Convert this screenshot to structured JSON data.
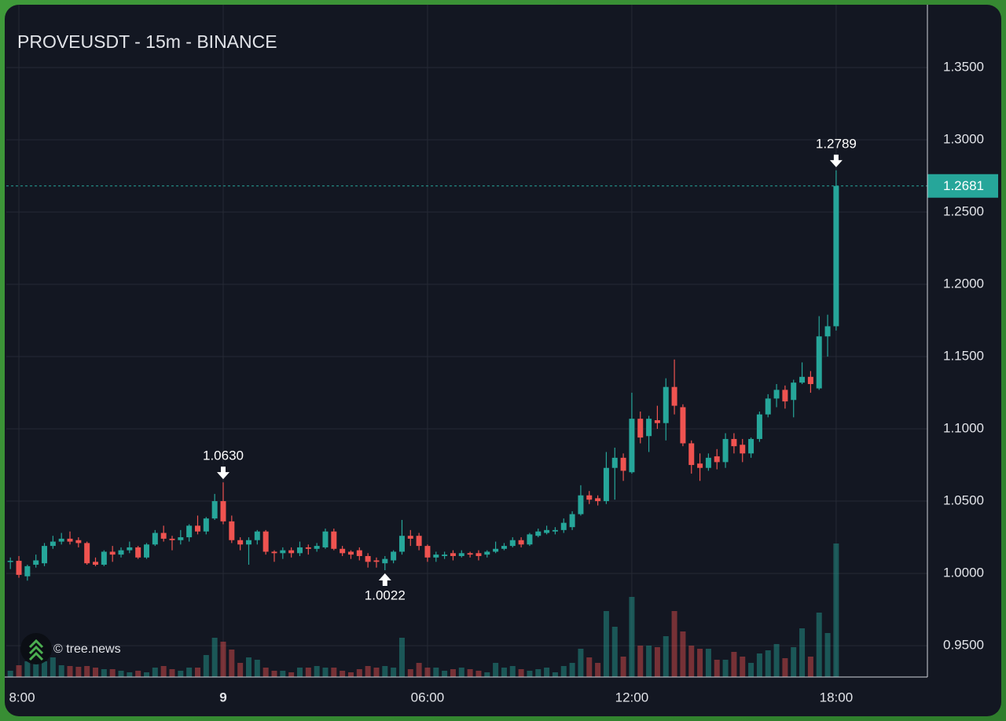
{
  "chart_data": {
    "type": "candlestick",
    "title": "PROVEUSDT - 15m - BINANCE",
    "watermark": "© tree.news",
    "up_color": "#26a69a",
    "down_color": "#ef5350",
    "x": [
      -6.25,
      -6,
      -5.75,
      -5.5,
      -5.25,
      -5,
      -4.75,
      -4.5,
      -4.25,
      -4,
      -3.75,
      -3.5,
      -3.25,
      -3,
      -2.75,
      -2.5,
      -2.25,
      -2,
      -1.75,
      -1.5,
      -1.25,
      -1,
      -0.75,
      -0.5,
      -0.25,
      0,
      0.25,
      0.5,
      0.75,
      1,
      1.25,
      1.5,
      1.75,
      2,
      2.25,
      2.5,
      2.75,
      3,
      3.25,
      3.5,
      3.75,
      4,
      4.25,
      4.5,
      4.75,
      5,
      5.25,
      5.5,
      5.75,
      6,
      6.25,
      6.5,
      6.75,
      7,
      7.25,
      7.5,
      7.75,
      8,
      8.25,
      8.5,
      8.75,
      9,
      9.25,
      9.5,
      9.75,
      10,
      10.25,
      10.5,
      10.75,
      11,
      11.25,
      11.5,
      11.75,
      12,
      12.25,
      12.5,
      12.75,
      13,
      13.25,
      13.5,
      13.75,
      14,
      14.25,
      14.5,
      14.75,
      15,
      15.25,
      15.5,
      15.75,
      16,
      16.25,
      16.5,
      16.75,
      17,
      17.25,
      17.5,
      17.75,
      18
    ],
    "open": [
      1.0082,
      1.0087,
      0.998,
      1.006,
      1.007,
      1.019,
      1.022,
      1.024,
      1.023,
      1.021,
      1.008,
      1.006,
      1.015,
      1.013,
      1.016,
      1.018,
      1.011,
      1.02,
      1.028,
      1.024,
      1.023,
      1.025,
      1.033,
      1.029,
      1.038,
      1.05,
      1.036,
      1.023,
      1.02,
      1.023,
      1.029,
      1.015,
      1.014,
      1.016,
      1.014,
      1.018,
      1.017,
      1.018,
      1.029,
      1.017,
      1.015,
      1.016,
      1.012,
      1.009,
      1.007,
      1.009,
      1.015,
      1.026,
      1.026,
      1.019,
      1.011,
      1.012,
      1.014,
      1.012,
      1.014,
      1.014,
      1.013,
      1.015,
      1.017,
      1.019,
      1.023,
      1.02,
      1.026,
      1.028,
      1.029,
      1.03,
      1.032,
      1.041,
      1.054,
      1.052,
      1.05,
      1.073,
      1.08,
      1.07,
      1.107,
      1.095,
      1.106,
      1.104,
      1.129,
      1.115,
      1.09,
      1.076,
      1.073,
      1.081,
      1.077,
      1.093,
      1.089,
      1.083,
      1.093,
      1.11,
      1.121,
      1.127,
      1.12,
      1.132,
      1.136,
      1.128,
      1.164,
      1.171
    ],
    "high": [
      1.011,
      1.012,
      1.006,
      1.013,
      1.021,
      1.026,
      1.028,
      1.029,
      1.025,
      1.022,
      1.011,
      1.016,
      1.019,
      1.018,
      1.022,
      1.019,
      1.021,
      1.03,
      1.033,
      1.026,
      1.03,
      1.034,
      1.04,
      1.039,
      1.055,
      1.063,
      1.04,
      1.025,
      1.025,
      1.03,
      1.03,
      1.016,
      1.018,
      1.018,
      1.022,
      1.02,
      1.021,
      1.031,
      1.031,
      1.019,
      1.016,
      1.018,
      1.014,
      1.011,
      1.012,
      1.016,
      1.037,
      1.03,
      1.028,
      1.02,
      1.015,
      1.015,
      1.016,
      1.016,
      1.015,
      1.016,
      1.016,
      1.022,
      1.021,
      1.025,
      1.025,
      1.028,
      1.031,
      1.033,
      1.032,
      1.038,
      1.043,
      1.061,
      1.057,
      1.054,
      1.084,
      1.087,
      1.083,
      1.125,
      1.112,
      1.109,
      1.116,
      1.135,
      1.148,
      1.117,
      1.092,
      1.083,
      1.083,
      1.086,
      1.097,
      1.097,
      1.093,
      1.094,
      1.112,
      1.124,
      1.131,
      1.13,
      1.134,
      1.146,
      1.14,
      1.178,
      1.179,
      1.2789
    ],
    "low": [
      1.003,
      0.997,
      0.995,
      1.004,
      1.005,
      1.017,
      1.02,
      1.02,
      1.018,
      1.006,
      1.005,
      1.005,
      1.008,
      1.011,
      1.014,
      1.01,
      1.01,
      1.019,
      1.022,
      1.016,
      1.02,
      1.022,
      1.027,
      1.027,
      1.037,
      1.034,
      1.021,
      1.016,
      1.006,
      1.02,
      1.013,
      1.008,
      1.01,
      1.011,
      1.012,
      1.013,
      1.015,
      1.017,
      1.016,
      1.012,
      1.01,
      1.009,
      1.004,
      1.004,
      1.0022,
      1.007,
      1.013,
      1.019,
      1.016,
      1.008,
      1.008,
      1.01,
      1.009,
      1.011,
      1.011,
      1.009,
      1.011,
      1.014,
      1.016,
      1.018,
      1.018,
      1.019,
      1.025,
      1.027,
      1.027,
      1.028,
      1.03,
      1.04,
      1.048,
      1.047,
      1.048,
      1.051,
      1.064,
      1.069,
      1.09,
      1.084,
      1.1,
      1.092,
      1.11,
      1.088,
      1.069,
      1.064,
      1.071,
      1.072,
      1.073,
      1.083,
      1.077,
      1.08,
      1.091,
      1.108,
      1.115,
      1.114,
      1.108,
      1.131,
      1.125,
      1.127,
      1.15,
      1.168
    ],
    "close": [
      1.0087,
      0.999,
      1.005,
      1.009,
      1.019,
      1.022,
      1.024,
      1.022,
      1.021,
      1.007,
      1.006,
      1.015,
      1.013,
      1.016,
      1.018,
      1.011,
      1.02,
      1.028,
      1.024,
      1.023,
      1.025,
      1.033,
      1.029,
      1.038,
      1.05,
      1.036,
      1.023,
      1.02,
      1.023,
      1.029,
      1.015,
      1.014,
      1.016,
      1.014,
      1.018,
      1.017,
      1.019,
      1.029,
      1.017,
      1.014,
      1.013,
      1.012,
      1.008,
      1.008,
      1.01,
      1.015,
      1.026,
      1.024,
      1.019,
      1.011,
      1.013,
      1.013,
      1.012,
      1.014,
      1.013,
      1.012,
      1.015,
      1.017,
      1.019,
      1.023,
      1.02,
      1.027,
      1.029,
      1.03,
      1.03,
      1.035,
      1.041,
      1.054,
      1.051,
      1.05,
      1.073,
      1.08,
      1.071,
      1.107,
      1.094,
      1.107,
      1.104,
      1.129,
      1.116,
      1.09,
      1.075,
      1.073,
      1.08,
      1.077,
      1.093,
      1.088,
      1.083,
      1.093,
      1.11,
      1.121,
      1.127,
      1.119,
      1.132,
      1.136,
      1.131,
      1.164,
      1.171,
      1.2681
    ],
    "volume": [
      8,
      15,
      20,
      18,
      20,
      25,
      15,
      14,
      13,
      14,
      12,
      10,
      10,
      8,
      6,
      8,
      6,
      12,
      14,
      10,
      8,
      12,
      12,
      28,
      50,
      45,
      35,
      18,
      25,
      22,
      12,
      8,
      8,
      6,
      12,
      12,
      14,
      12,
      12,
      8,
      6,
      10,
      14,
      12,
      14,
      12,
      50,
      10,
      18,
      12,
      12,
      8,
      10,
      12,
      10,
      8,
      6,
      18,
      12,
      14,
      10,
      8,
      10,
      12,
      6,
      14,
      18,
      36,
      25,
      18,
      84,
      64,
      26,
      102,
      40,
      40,
      38,
      52,
      84,
      58,
      40,
      36,
      36,
      22,
      22,
      32,
      26,
      18,
      30,
      34,
      42,
      24,
      38,
      62,
      26,
      82,
      56,
      170
    ],
    "xlim": [
      -6.37,
      20.68
    ],
    "ylim": [
      0.9283,
      1.3924
    ],
    "xticks": [
      {
        "value": -6,
        "label": "8:00"
      },
      {
        "value": 0,
        "label": "9"
      },
      {
        "value": 6,
        "label": "06:00"
      },
      {
        "value": 12,
        "label": "12:00"
      },
      {
        "value": 18,
        "label": "18:00"
      }
    ],
    "yticks": [
      {
        "value": 0.95,
        "label": "0.9500"
      },
      {
        "value": 1.0,
        "label": "1.0000"
      },
      {
        "value": 1.05,
        "label": "1.0500"
      },
      {
        "value": 1.1,
        "label": "1.1000"
      },
      {
        "value": 1.15,
        "label": "1.1500"
      },
      {
        "value": 1.2,
        "label": "1.2000"
      },
      {
        "value": 1.25,
        "label": "1.2500"
      },
      {
        "value": 1.3,
        "label": "1.3000"
      },
      {
        "value": 1.35,
        "label": "1.3500"
      }
    ],
    "grid": true,
    "annotations": [
      {
        "x": 0,
        "value": 1.063,
        "label": "1.0630",
        "position": "above"
      },
      {
        "x": 4.75,
        "value": 1.0022,
        "label": "1.0022",
        "position": "below"
      },
      {
        "x": 18,
        "value": 1.2789,
        "label": "1.2789",
        "position": "above"
      }
    ]
  }
}
